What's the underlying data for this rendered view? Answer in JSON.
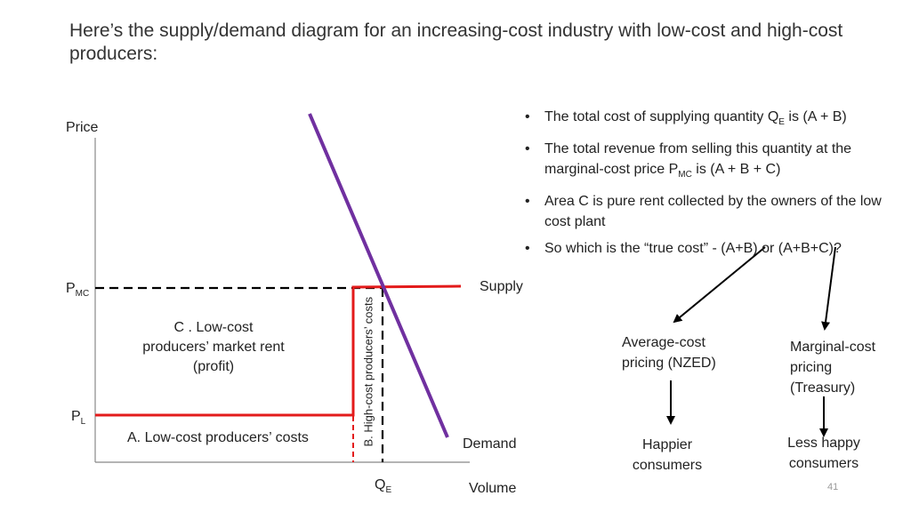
{
  "title": "Here’s the supply/demand diagram for an increasing-cost industry with low-cost and high-cost producers:",
  "axes": {
    "y_label": "Price",
    "x_label": "Volume"
  },
  "labels": {
    "pmc_main": "P",
    "pmc_sub": "MC",
    "pl_main": "P",
    "pl_sub": "L",
    "qe_main": "Q",
    "qe_sub": "E",
    "supply": "Supply",
    "demand": "Demand",
    "area_c": "C .   Low-cost producers’ market rent (profit)",
    "area_a": "A.  Low-cost producers’ costs",
    "area_b": "B. High-cost producers’ costs"
  },
  "bullets": [
    {
      "pre": "The total cost of supplying quantity Q",
      "sub": "E",
      "post": " is (A + B)"
    },
    {
      "pre": "The total revenue from selling this quantity at the marginal-cost price P",
      "sub": "MC",
      "post": " is (A + B + C)"
    },
    {
      "pre": "Area C is pure rent collected by the owners of the low cost plant",
      "sub": "",
      "post": ""
    },
    {
      "pre": "So which is the “true cost” -  (A+B) or (A+B+C)?",
      "sub": "",
      "post": ""
    }
  ],
  "flow": {
    "avg_cost": "Average-cost pricing (NZED)",
    "marginal_cost": "Marginal-cost pricing (Treasury)",
    "happier": "Happier consumers",
    "less_happy": "Less happy consumers"
  },
  "page_number": "41",
  "colors": {
    "supply": "#e31b1b",
    "demand": "#7030a0",
    "axis": "#888888",
    "dashed": "#000000"
  }
}
